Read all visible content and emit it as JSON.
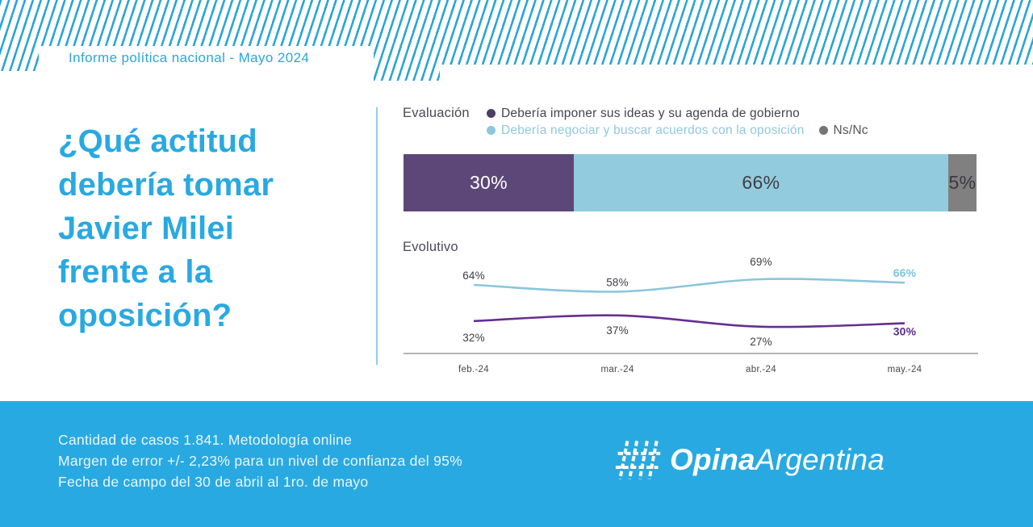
{
  "header": {
    "report_label": "Informe política nacional - Mayo 2024"
  },
  "hero": {
    "title": "¿Qué actitud debería tomar Javier Milei frente a la oposición?",
    "title_lines": [
      "¿Qué actitud",
      "debería tomar",
      "Javier Milei",
      "frente a la",
      "oposición?"
    ]
  },
  "evaluation": {
    "section_label": "Evaluación",
    "legend": [
      {
        "label": "Debería imponer sus ideas y su agenda de gobierno",
        "color": "#4d3e63"
      },
      {
        "label": "Debería negociar y buscar acuerdos con la oposición",
        "color": "#8fc6dc"
      },
      {
        "label": "Ns/Nc",
        "color": "#757578"
      }
    ]
  },
  "evolution": {
    "section_label": "Evolutivo"
  },
  "chart_data": [
    {
      "type": "bar",
      "variant": "stacked-horizontal",
      "title": "Evaluación",
      "categories": [
        "Debería imponer sus ideas y su agenda de gobierno",
        "Debería negociar y buscar acuerdos con la oposición",
        "Ns/Nc"
      ],
      "values": [
        30,
        66,
        5
      ],
      "unit": "%",
      "colors": [
        "#5d4778",
        "#92cbdd",
        "#808080"
      ]
    },
    {
      "type": "line",
      "title": "Evolutivo",
      "x": [
        "feb.-24",
        "mar.-24",
        "abr.-24",
        "may.-24"
      ],
      "series": [
        {
          "name": "Debería negociar y buscar acuerdos con la oposición",
          "values": [
            64,
            58,
            69,
            66
          ],
          "color": "#8ac6dc",
          "last_label_color": "#7cc4dc"
        },
        {
          "name": "Debería imponer sus ideas y su agenda de gobierno",
          "values": [
            32,
            37,
            27,
            30
          ],
          "color": "#662e91",
          "last_label_color": "#5b2d8e"
        }
      ],
      "unit": "%",
      "ylim": [
        20,
        75
      ],
      "grid": false,
      "legend_position": "top",
      "label_offsets": [
        [
          -7,
          -7,
          -17,
          -7
        ],
        [
          25,
          23,
          23,
          15
        ]
      ],
      "label_color": "#3f3f44",
      "axis_color": "#9b9b9b",
      "tick_color": "#48484a"
    }
  ],
  "footer": {
    "lines": [
      "Cantidad de casos 1.841. Metodología online",
      "Margen de error +/- 2,23% para un nivel de confianza del 95%",
      "Fecha de campo del 30 de abril al 1ro. de mayo"
    ],
    "brand": {
      "name_bold": "Opina",
      "name_light": "Argentina"
    }
  },
  "colors": {
    "brand_azure": "#29a9e1",
    "stripe_blue": "#2ca5d6",
    "bar_purple": "#5d4778",
    "bar_light_blue": "#92cbdd",
    "bar_gray": "#808080",
    "line_purple": "#662e91",
    "line_light_blue": "#8ac6dc",
    "text_dark": "#45424f"
  }
}
